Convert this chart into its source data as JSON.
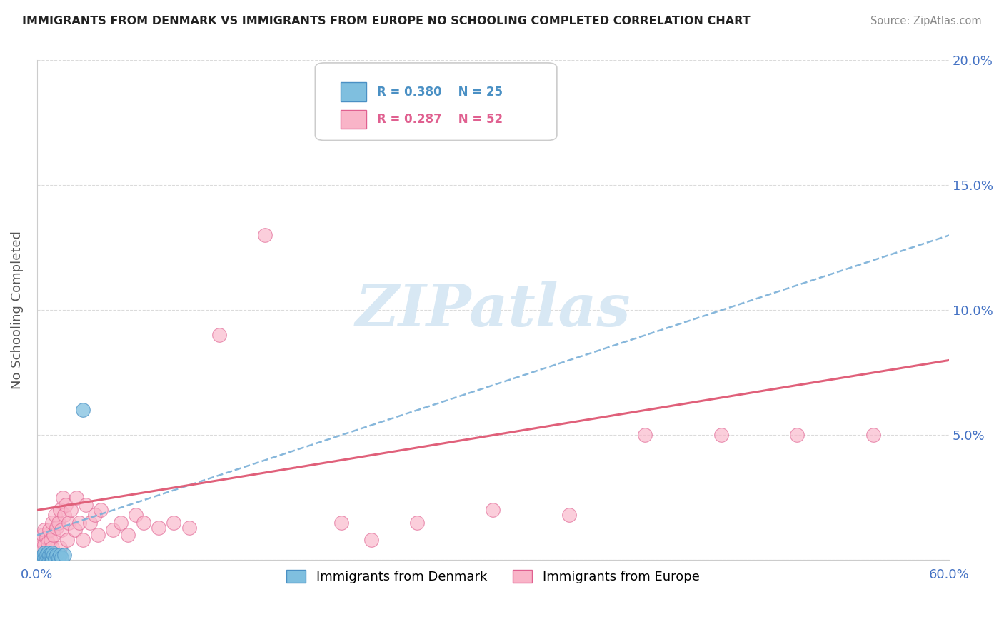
{
  "title": "IMMIGRANTS FROM DENMARK VS IMMIGRANTS FROM EUROPE NO SCHOOLING COMPLETED CORRELATION CHART",
  "source": "Source: ZipAtlas.com",
  "ylabel_label": "No Schooling Completed",
  "xmin": 0.0,
  "xmax": 0.6,
  "ymin": 0.0,
  "ymax": 0.2,
  "ytick_vals": [
    0.0,
    0.05,
    0.1,
    0.15,
    0.2
  ],
  "ytick_labels": [
    "",
    "5.0%",
    "10.0%",
    "15.0%",
    "20.0%"
  ],
  "xtick_vals": [
    0.0,
    0.6
  ],
  "xtick_labels": [
    "0.0%",
    "60.0%"
  ],
  "color_denmark": "#7fbfdf",
  "color_denmark_edge": "#4a90c4",
  "color_europe": "#f9b4c8",
  "color_europe_edge": "#e06090",
  "color_trend_denmark": "#7ab0d8",
  "color_trend_europe": "#e0607a",
  "watermark_color": "#d8e8f4",
  "legend_box_edge": "#cccccc",
  "legend_r1_color": "#4a90c4",
  "legend_r2_color": "#e06090",
  "denmark_x": [
    0.002,
    0.003,
    0.004,
    0.004,
    0.005,
    0.005,
    0.006,
    0.006,
    0.007,
    0.007,
    0.008,
    0.008,
    0.009,
    0.009,
    0.01,
    0.01,
    0.01,
    0.011,
    0.012,
    0.013,
    0.014,
    0.015,
    0.016,
    0.018,
    0.03
  ],
  "denmark_y": [
    0.0,
    0.001,
    0.0,
    0.002,
    0.001,
    0.003,
    0.0,
    0.002,
    0.001,
    0.003,
    0.0,
    0.002,
    0.001,
    0.002,
    0.0,
    0.001,
    0.003,
    0.002,
    0.001,
    0.002,
    0.001,
    0.002,
    0.001,
    0.002,
    0.06
  ],
  "europe_x": [
    0.002,
    0.003,
    0.004,
    0.005,
    0.005,
    0.006,
    0.007,
    0.008,
    0.009,
    0.01,
    0.01,
    0.011,
    0.012,
    0.013,
    0.014,
    0.015,
    0.015,
    0.016,
    0.017,
    0.018,
    0.019,
    0.02,
    0.021,
    0.022,
    0.025,
    0.026,
    0.028,
    0.03,
    0.032,
    0.035,
    0.038,
    0.04,
    0.042,
    0.05,
    0.055,
    0.06,
    0.065,
    0.07,
    0.08,
    0.09,
    0.1,
    0.12,
    0.15,
    0.2,
    0.22,
    0.25,
    0.3,
    0.35,
    0.4,
    0.45,
    0.5,
    0.55
  ],
  "europe_y": [
    0.005,
    0.008,
    0.01,
    0.006,
    0.012,
    0.009,
    0.007,
    0.012,
    0.008,
    0.005,
    0.015,
    0.01,
    0.018,
    0.013,
    0.015,
    0.005,
    0.02,
    0.012,
    0.025,
    0.018,
    0.022,
    0.008,
    0.015,
    0.02,
    0.012,
    0.025,
    0.015,
    0.008,
    0.022,
    0.015,
    0.018,
    0.01,
    0.02,
    0.012,
    0.015,
    0.01,
    0.018,
    0.015,
    0.013,
    0.015,
    0.013,
    0.09,
    0.13,
    0.015,
    0.008,
    0.015,
    0.02,
    0.018,
    0.05,
    0.05,
    0.05,
    0.05
  ]
}
